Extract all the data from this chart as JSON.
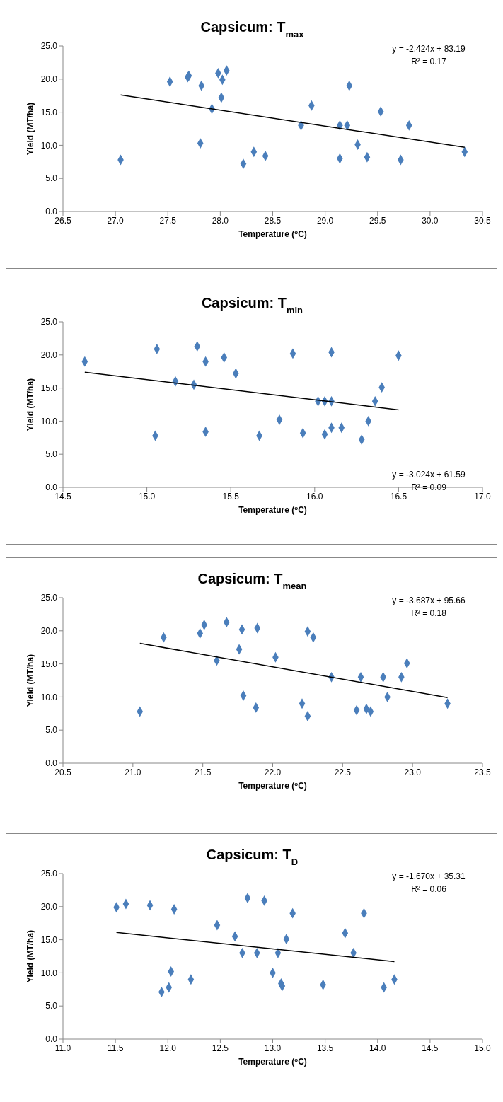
{
  "chart_data": [
    {
      "type": "scatter",
      "title": "Capsicum: T$_{max}$",
      "xlabel": "Temperature ($^{o}$C)",
      "ylabel": "Yield (MT/ha)",
      "marker": "diamond",
      "grid": false,
      "xlim": [
        26.5,
        30.5
      ],
      "xticks": [
        {
          "value": 26.5,
          "label": "26.5"
        },
        {
          "value": 27,
          "label": "27.0"
        },
        {
          "value": 27.5,
          "label": "27.5"
        },
        {
          "value": 28,
          "label": "28.0"
        },
        {
          "value": 28.5,
          "label": "28.5"
        },
        {
          "value": 29,
          "label": "29.0"
        },
        {
          "value": 29.5,
          "label": "29.5"
        },
        {
          "value": 30,
          "label": "30.0"
        },
        {
          "value": 30.5,
          "label": "30.5"
        }
      ],
      "ylim": [
        0,
        25
      ],
      "yticks": [
        {
          "value": 0,
          "label": "0.0"
        },
        {
          "value": 5,
          "label": "5.0"
        },
        {
          "value": 10,
          "label": "10.0"
        },
        {
          "value": 15,
          "label": "15.0"
        },
        {
          "value": 20,
          "label": "20.0"
        },
        {
          "value": 25,
          "label": "25.0"
        }
      ],
      "annotations": [
        "y = -2.424x + 83.19",
        "R² = 0.17"
      ],
      "series": [
        {
          "color": "#4a7ebb",
          "x": [
            27.05,
            27.52,
            27.69,
            27.7,
            27.82,
            27.92,
            27.98,
            28.01,
            28.02,
            28.06,
            27.81,
            28.22,
            28.32,
            28.43,
            28.77,
            28.87,
            29.14,
            29.14,
            29.21,
            29.23,
            29.31,
            29.4,
            29.53,
            29.72,
            29.8,
            30.33
          ],
          "values": [
            7.8,
            19.6,
            20.3,
            20.5,
            19.0,
            15.5,
            20.9,
            17.2,
            19.9,
            21.3,
            10.3,
            7.2,
            9.0,
            8.4,
            13.0,
            16.0,
            13.0,
            8.0,
            13.0,
            19.0,
            10.1,
            8.2,
            15.1,
            7.8,
            13.0,
            9.0
          ]
        },
        {
          "type": "line",
          "color": "#000000",
          "marker": "none",
          "line_style": "solid",
          "x": [
            27.05,
            30.33
          ],
          "values": [
            17.6,
            9.7
          ]
        }
      ]
    },
    {
      "type": "scatter",
      "title": "Capsicum: T$_{min}$",
      "xlabel": "Temperature ($^{o}$C)",
      "ylabel": "Yield (MT/ha)",
      "marker": "diamond",
      "grid": false,
      "xlim": [
        14.5,
        17
      ],
      "xticks": [
        {
          "value": 14.5,
          "label": "14.5"
        },
        {
          "value": 15,
          "label": "15.0"
        },
        {
          "value": 15.5,
          "label": "15.5"
        },
        {
          "value": 16,
          "label": "16.0"
        },
        {
          "value": 16.5,
          "label": "16.5"
        },
        {
          "value": 17,
          "label": "17.0"
        }
      ],
      "ylim": [
        0,
        25
      ],
      "yticks": [
        {
          "value": 0,
          "label": "0.0"
        },
        {
          "value": 5,
          "label": "5.0"
        },
        {
          "value": 10,
          "label": "10.0"
        },
        {
          "value": 15,
          "label": "15.0"
        },
        {
          "value": 20,
          "label": "20.0"
        },
        {
          "value": 25,
          "label": "25.0"
        }
      ],
      "annotations": [
        "y = -3.024x + 61.59",
        "R² = 0.09"
      ],
      "series": [
        {
          "color": "#4a7ebb",
          "x": [
            14.63,
            15.06,
            15.05,
            15.17,
            15.28,
            15.3,
            15.35,
            15.35,
            15.46,
            15.53,
            15.67,
            15.79,
            15.87,
            15.93,
            16.02,
            16.06,
            16.06,
            16.1,
            16.1,
            16.1,
            16.16,
            16.28,
            16.32,
            16.36,
            16.4,
            16.5
          ],
          "values": [
            19.0,
            20.9,
            7.8,
            16.0,
            15.5,
            21.3,
            19.0,
            8.4,
            19.6,
            17.2,
            7.8,
            10.2,
            20.2,
            8.2,
            13.0,
            13.0,
            8.0,
            13.0,
            20.4,
            9.0,
            9.0,
            7.2,
            10.0,
            13.0,
            15.1,
            19.9
          ]
        },
        {
          "type": "line",
          "color": "#000000",
          "marker": "none",
          "line_style": "solid",
          "x": [
            14.63,
            16.5
          ],
          "values": [
            17.4,
            11.7
          ]
        }
      ]
    },
    {
      "type": "scatter",
      "title": "Capsicum: T$_{mean}$",
      "xlabel": "Temperature ($^{o}$C)",
      "ylabel": "Yield (MT/ha)",
      "marker": "diamond",
      "grid": false,
      "xlim": [
        20.5,
        23.5
      ],
      "xticks": [
        {
          "value": 20.5,
          "label": "20.5"
        },
        {
          "value": 21,
          "label": "21.0"
        },
        {
          "value": 21.5,
          "label": "21.5"
        },
        {
          "value": 22,
          "label": "22.0"
        },
        {
          "value": 22.5,
          "label": "22.5"
        },
        {
          "value": 23,
          "label": "23.0"
        },
        {
          "value": 23.5,
          "label": "23.5"
        }
      ],
      "ylim": [
        0,
        25
      ],
      "yticks": [
        {
          "value": 0,
          "label": "0.0"
        },
        {
          "value": 5,
          "label": "5.0"
        },
        {
          "value": 10,
          "label": "10.0"
        },
        {
          "value": 15,
          "label": "15.0"
        },
        {
          "value": 20,
          "label": "20.0"
        },
        {
          "value": 25,
          "label": "25.0"
        }
      ],
      "annotations": [
        "y = -3.687x + 95.66",
        "R² = 0.18"
      ],
      "series": [
        {
          "color": "#4a7ebb",
          "x": [
            21.05,
            21.22,
            21.48,
            21.51,
            21.6,
            21.67,
            21.76,
            21.78,
            21.79,
            21.89,
            21.88,
            22.02,
            22.21,
            22.25,
            22.25,
            22.29,
            22.42,
            22.6,
            22.63,
            22.67,
            22.7,
            22.79,
            22.82,
            22.92,
            22.96,
            23.25
          ],
          "values": [
            7.8,
            19.0,
            19.6,
            20.9,
            15.5,
            21.3,
            17.2,
            20.2,
            10.2,
            20.4,
            8.4,
            16.0,
            9.0,
            7.1,
            19.9,
            19.0,
            13.0,
            8.0,
            13.0,
            8.2,
            7.8,
            13.0,
            10.0,
            13.0,
            15.1,
            9.0
          ]
        },
        {
          "type": "line",
          "color": "#000000",
          "marker": "none",
          "line_style": "solid",
          "x": [
            21.05,
            23.25
          ],
          "values": [
            18.1,
            9.9
          ]
        }
      ]
    },
    {
      "type": "scatter",
      "title": "Capsicum: T$_{D}$",
      "xlabel": "Temperature ($^{o}$C)",
      "ylabel": "Yield (MT/ha)",
      "marker": "diamond",
      "grid": false,
      "xlim": [
        11,
        15
      ],
      "xticks": [
        {
          "value": 11,
          "label": "11.0"
        },
        {
          "value": 11.5,
          "label": "11.5"
        },
        {
          "value": 12,
          "label": "12.0"
        },
        {
          "value": 12.5,
          "label": "12.5"
        },
        {
          "value": 13,
          "label": "13.0"
        },
        {
          "value": 13.5,
          "label": "13.5"
        },
        {
          "value": 14,
          "label": "14.0"
        },
        {
          "value": 14.5,
          "label": "14.5"
        },
        {
          "value": 15,
          "label": "15.0"
        }
      ],
      "ylim": [
        0,
        25
      ],
      "yticks": [
        {
          "value": 0,
          "label": "0.0"
        },
        {
          "value": 5,
          "label": "5.0"
        },
        {
          "value": 10,
          "label": "10.0"
        },
        {
          "value": 15,
          "label": "15.0"
        },
        {
          "value": 20,
          "label": "20.0"
        },
        {
          "value": 25,
          "label": "25.0"
        }
      ],
      "annotations": [
        "y = -1.670x + 35.31",
        "R² = 0.06"
      ],
      "series": [
        {
          "color": "#4a7ebb",
          "x": [
            11.51,
            11.6,
            11.83,
            12.06,
            12.03,
            12.01,
            11.94,
            12.22,
            12.47,
            12.64,
            12.71,
            12.76,
            12.85,
            12.92,
            13.0,
            13.05,
            13.08,
            13.09,
            13.13,
            13.19,
            13.48,
            13.69,
            13.77,
            13.87,
            14.06,
            14.16
          ],
          "values": [
            19.9,
            20.4,
            20.2,
            19.6,
            10.2,
            7.8,
            7.1,
            9.0,
            17.2,
            15.5,
            13.0,
            21.3,
            13.0,
            20.9,
            10.0,
            13.0,
            8.4,
            8.0,
            15.1,
            19.0,
            8.2,
            16.0,
            13.0,
            19.0,
            7.8,
            9.0
          ]
        },
        {
          "type": "line",
          "color": "#000000",
          "marker": "none",
          "line_style": "solid",
          "x": [
            11.51,
            14.16
          ],
          "values": [
            16.1,
            11.7
          ]
        }
      ]
    }
  ]
}
